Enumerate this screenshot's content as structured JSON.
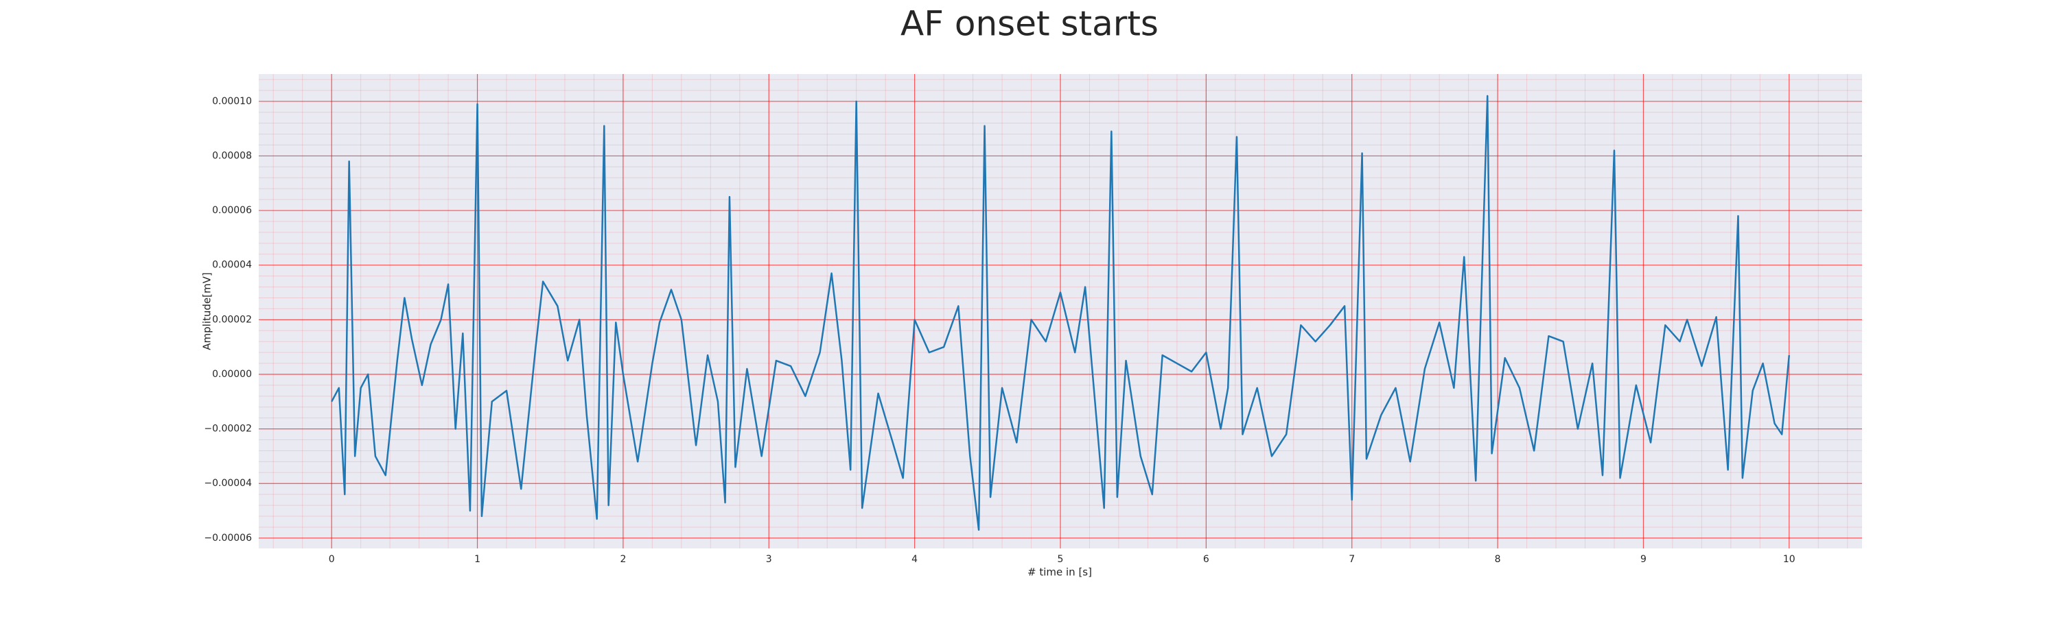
{
  "chart_data": {
    "type": "line",
    "title": "AF onset starts",
    "x_label": "# time in [s]",
    "y_label": "Amplitude[mV]",
    "x": [
      0,
      0.05,
      0.09,
      0.12,
      0.16,
      0.2,
      0.25,
      0.3,
      0.37,
      0.45,
      0.5,
      0.55,
      0.62,
      0.68,
      0.75,
      0.8,
      0.85,
      0.9,
      0.95,
      1,
      1.03,
      1.1,
      1.2,
      1.3,
      1.4,
      1.45,
      1.55,
      1.62,
      1.7,
      1.75,
      1.82,
      1.87,
      1.9,
      1.95,
      2,
      2.1,
      2.2,
      2.25,
      2.33,
      2.4,
      2.5,
      2.58,
      2.65,
      2.7,
      2.73,
      2.77,
      2.85,
      2.95,
      3.05,
      3.15,
      3.25,
      3.35,
      3.43,
      3.5,
      3.56,
      3.6,
      3.64,
      3.75,
      3.85,
      3.92,
      4,
      4.1,
      4.2,
      4.3,
      4.38,
      4.44,
      4.48,
      4.52,
      4.6,
      4.7,
      4.8,
      4.9,
      5,
      5.1,
      5.17,
      5.3,
      5.35,
      5.39,
      5.45,
      5.55,
      5.63,
      5.7,
      5.8,
      5.9,
      6,
      6.1,
      6.15,
      6.21,
      6.25,
      6.35,
      6.45,
      6.55,
      6.65,
      6.75,
      6.85,
      6.95,
      7,
      7.07,
      7.1,
      7.2,
      7.3,
      7.4,
      7.5,
      7.6,
      7.7,
      7.77,
      7.85,
      7.93,
      7.96,
      8.05,
      8.15,
      8.25,
      8.35,
      8.45,
      8.55,
      8.65,
      8.72,
      8.8,
      8.84,
      8.95,
      9.05,
      9.15,
      9.25,
      9.3,
      9.4,
      9.5,
      9.58,
      9.65,
      9.68,
      9.75,
      9.82,
      9.9,
      9.95,
      10
    ],
    "series": [
      {
        "name": "Amplitude",
        "color": "#1f77b4",
        "values": [
          -1e-05,
          -5e-06,
          -4.4e-05,
          7.8e-05,
          -3e-05,
          -5e-06,
          0.0,
          -3e-05,
          -3.7e-05,
          5e-06,
          2.8e-05,
          1.3e-05,
          -4e-06,
          1.1e-05,
          2e-05,
          3.3e-05,
          -2e-05,
          1.5e-05,
          -5e-05,
          9.9e-05,
          -5.2e-05,
          -1e-05,
          -6e-06,
          -4.2e-05,
          1e-05,
          3.4e-05,
          2.5e-05,
          5e-06,
          2e-05,
          -1.5e-05,
          -5.3e-05,
          9.1e-05,
          -4.8e-05,
          1.9e-05,
          0.0,
          -3.2e-05,
          4e-06,
          1.9e-05,
          3.1e-05,
          2e-05,
          -2.6e-05,
          7e-06,
          -1e-05,
          -4.7e-05,
          6.5e-05,
          -3.4e-05,
          2e-06,
          -3e-05,
          5e-06,
          3e-06,
          -8e-06,
          8e-06,
          3.7e-05,
          5e-06,
          -3.5e-05,
          0.0001,
          -4.9e-05,
          -7e-06,
          -2.5e-05,
          -3.8e-05,
          2e-05,
          8e-06,
          1e-05,
          2.5e-05,
          -3e-05,
          -5.7e-05,
          9.1e-05,
          -4.5e-05,
          -5e-06,
          -2.5e-05,
          2e-05,
          1.2e-05,
          3e-05,
          8e-06,
          3.2e-05,
          -4.9e-05,
          8.9e-05,
          -4.5e-05,
          5e-06,
          -3e-05,
          -4.4e-05,
          7e-06,
          4e-06,
          1e-06,
          8e-06,
          -2e-05,
          -5e-06,
          8.7e-05,
          -2.2e-05,
          -5e-06,
          -3e-05,
          -2.2e-05,
          1.8e-05,
          1.2e-05,
          1.8e-05,
          2.5e-05,
          -4.6e-05,
          8.1e-05,
          -3.1e-05,
          -1.5e-05,
          -5e-06,
          -3.2e-05,
          2e-06,
          1.9e-05,
          -5e-06,
          4.3e-05,
          -3.9e-05,
          0.000102,
          -2.9e-05,
          6e-06,
          -5e-06,
          -2.8e-05,
          1.4e-05,
          1.2e-05,
          -2e-05,
          4e-06,
          -3.7e-05,
          8.2e-05,
          -3.8e-05,
          -4e-06,
          -2.5e-05,
          1.8e-05,
          1.2e-05,
          2e-05,
          3e-06,
          2.1e-05,
          -3.5e-05,
          5.8e-05,
          -3.8e-05,
          -6e-06,
          4e-06,
          -1.8e-05,
          -2.2e-05,
          7e-06
        ]
      }
    ],
    "xlim": [
      -0.5,
      10.5
    ],
    "xticks": [
      0,
      1,
      2,
      3,
      4,
      5,
      6,
      7,
      8,
      9,
      10
    ],
    "ylim": [
      -6.38e-05,
      0.00011
    ],
    "yticks": [
      {
        "value": -6e-05,
        "label": "−0.00006"
      },
      {
        "value": -4e-05,
        "label": "−0.00004"
      },
      {
        "value": -2e-05,
        "label": "−0.00002"
      },
      {
        "value": 0,
        "label": "0.00000"
      },
      {
        "value": 2e-05,
        "label": "0.00002"
      },
      {
        "value": 4e-05,
        "label": "0.00004"
      },
      {
        "value": 6e-05,
        "label": "0.00006"
      },
      {
        "value": 8e-05,
        "label": "0.00008"
      },
      {
        "value": 0.0001,
        "label": "0.00010"
      }
    ],
    "grid": true,
    "minor_grid": true,
    "grid_color": "#ff0000",
    "background": "#eaeaf2"
  }
}
